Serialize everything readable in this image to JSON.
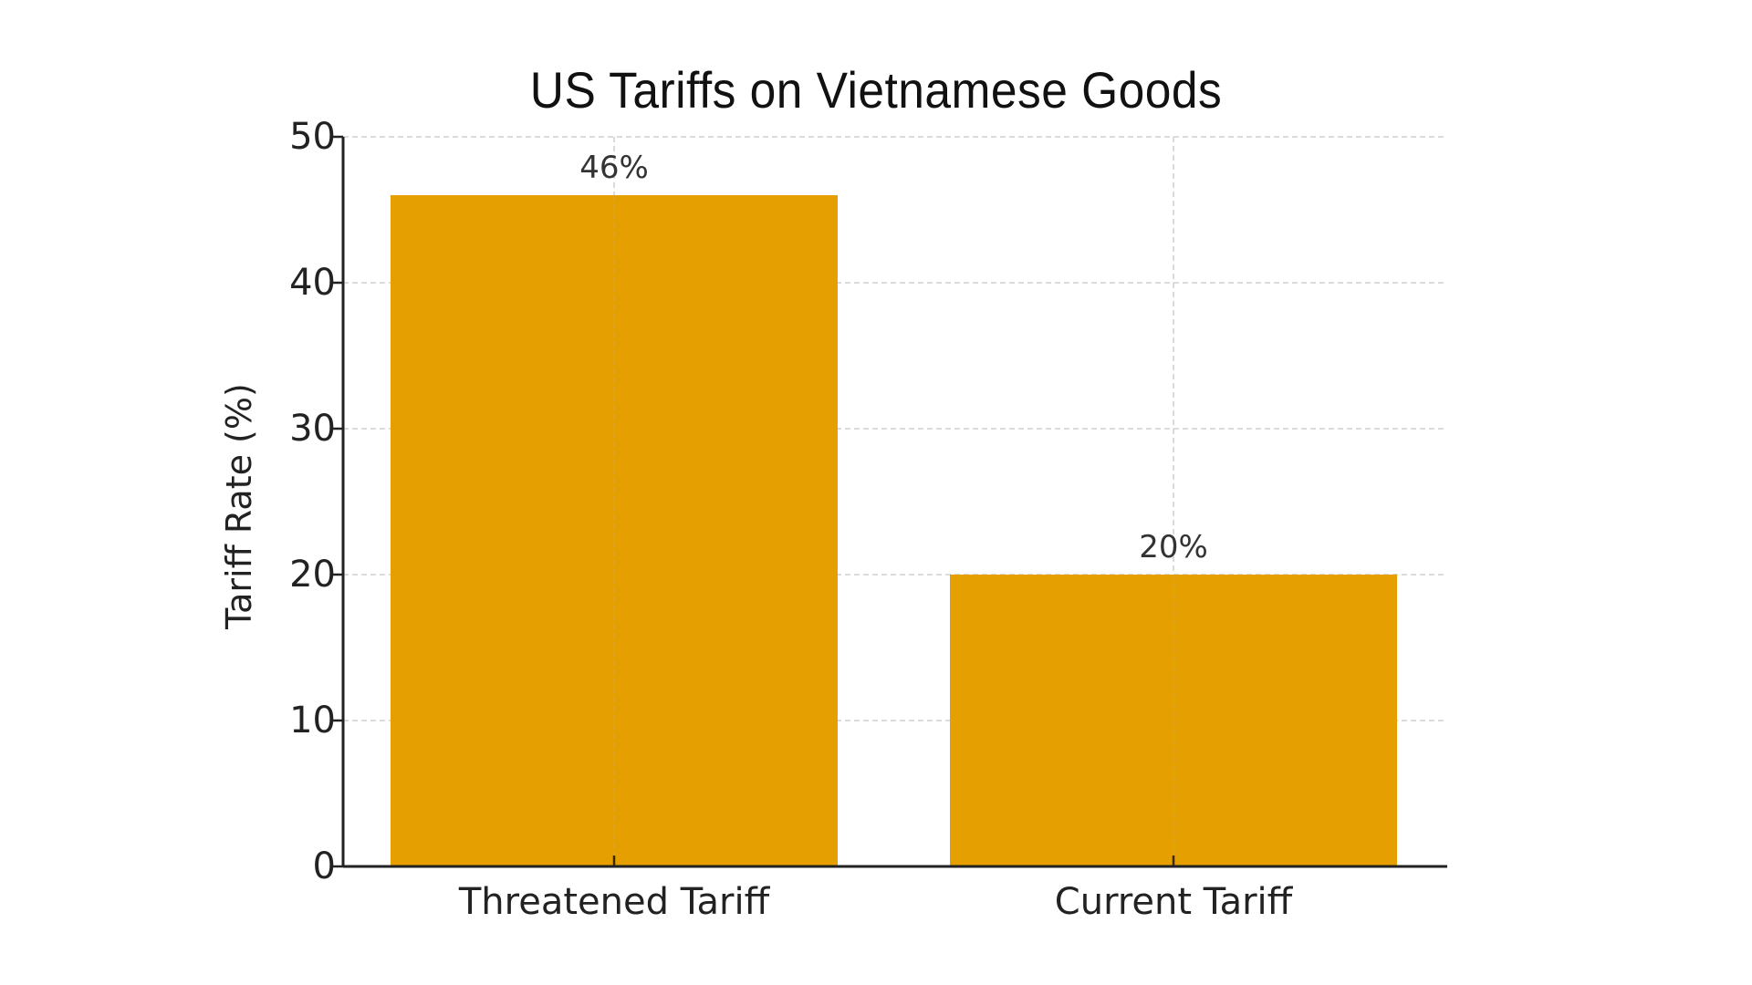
{
  "chart_data": {
    "type": "bar",
    "title": "US Tariffs on Vietnamese Goods",
    "xlabel": "",
    "ylabel": "Tariff Rate (%)",
    "categories": [
      "Threatened Tariff",
      "Current Tariff"
    ],
    "values": [
      46,
      20
    ],
    "value_labels": [
      "46%",
      "20%"
    ],
    "ylim": [
      0,
      50
    ],
    "yticks": [
      0,
      10,
      20,
      30,
      40,
      50
    ],
    "ytick_labels": [
      "0",
      "10",
      "20",
      "30",
      "40",
      "50"
    ],
    "grid": true,
    "grid_style": "dashed",
    "bar_color": "#E69F00",
    "legend": null
  }
}
